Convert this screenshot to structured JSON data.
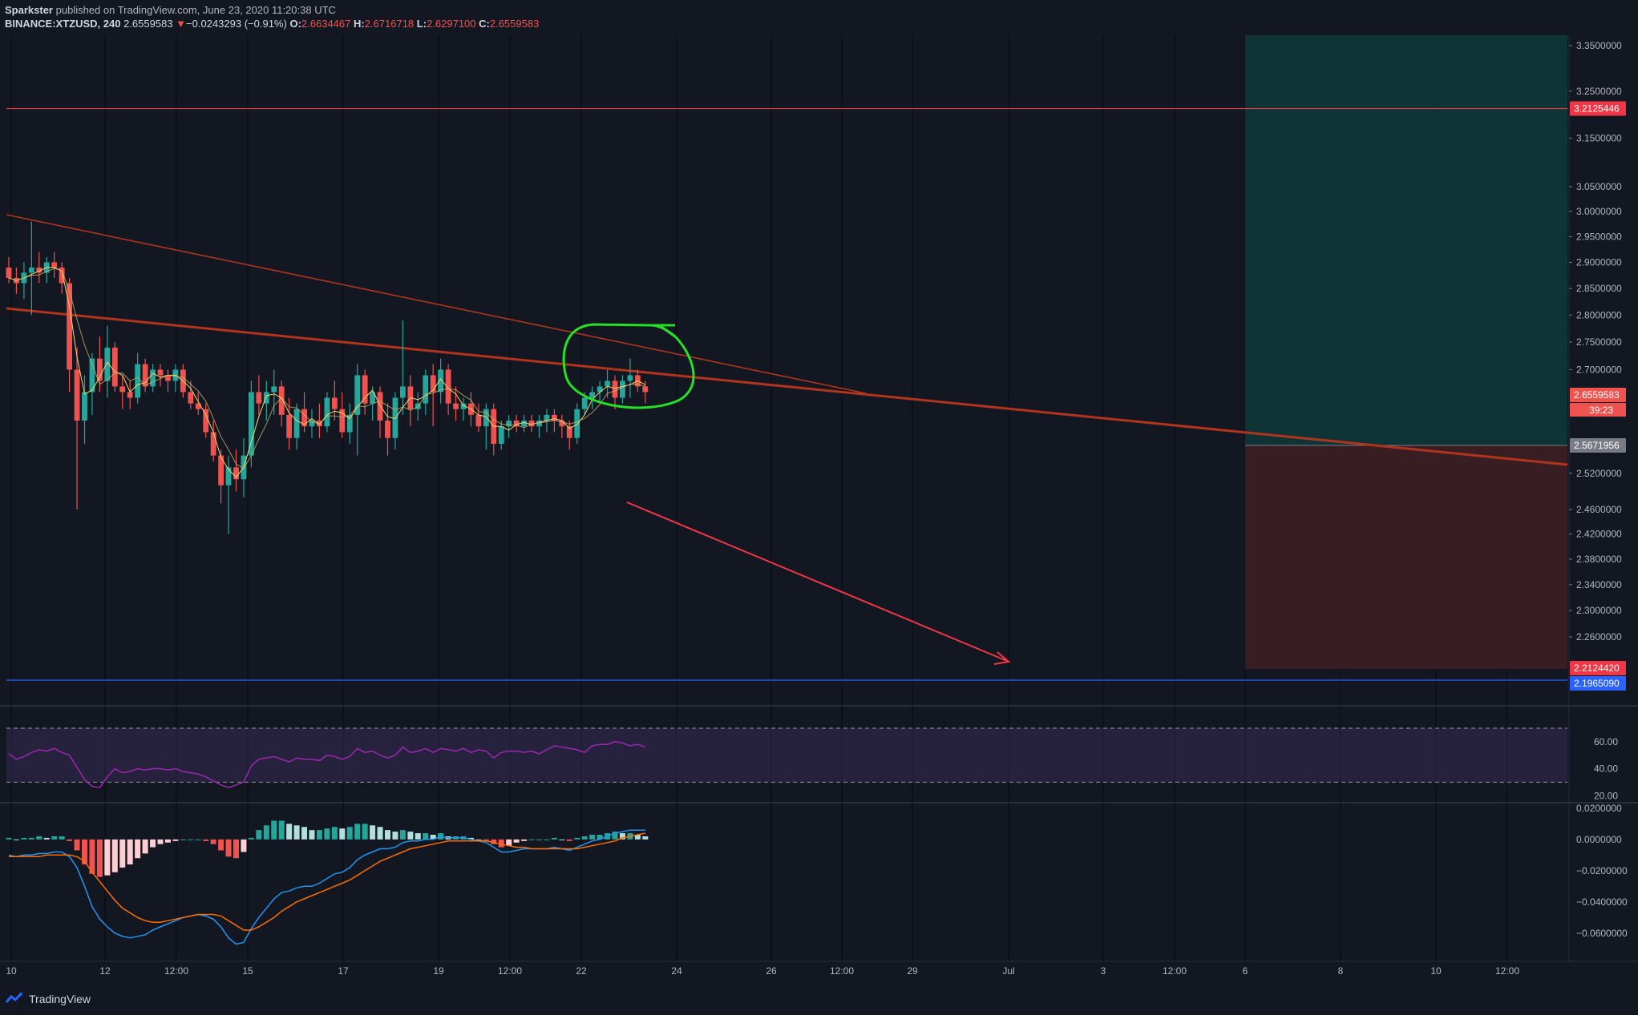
{
  "header": {
    "publisher": "Sparkster",
    "published_text": "published on TradingView.com, June 23, 2020 11:20:38 UTC",
    "symbol": "BINANCE:XTZUSD, 240",
    "last": "2.6559583",
    "change_arrow": "▼",
    "change": "−0.0243293 (−0.91%)",
    "o_label": "O:",
    "o_value": "2.6634467",
    "h_label": "H:",
    "h_value": "2.6716718",
    "l_label": "L:",
    "l_value": "2.6297100",
    "c_label": "C:",
    "c_value": "2.6559583"
  },
  "brand": {
    "name": "TradingView"
  },
  "colors": {
    "background": "#131722",
    "up": "#26a69a",
    "down": "#ef5350",
    "resistance": "#f23645",
    "support": "#2962ff",
    "trendline": "#b2341c",
    "rsi_line": "#9c27b0",
    "macd_line": "#2196f3",
    "signal_line": "#ff6d00",
    "annotation_circle": "#26e026",
    "target_zone": "#0e3a3a",
    "stop_zone": "#3d1f24"
  },
  "chart_data": [
    {
      "type": "candlestick",
      "title": "BINANCE:XTZUSD, 240",
      "x_ticks": [
        "10",
        "12",
        "12:00",
        "15",
        "17",
        "19",
        "12:00",
        "22",
        "24",
        "26",
        "12:00",
        "29",
        "Jul",
        "3",
        "12:00",
        "6",
        "8",
        "10",
        "12:00"
      ],
      "y_ticks": [
        "3.3500000",
        "3.2500000",
        "3.1500000",
        "3.0500000",
        "3.0000000",
        "2.9500000",
        "2.9000000",
        "2.8500000",
        "2.8000000",
        "2.7500000",
        "2.7000000",
        "2.5200000",
        "2.4600000",
        "2.4200000",
        "2.3800000",
        "2.3400000",
        "2.3000000",
        "2.2600000"
      ],
      "y_scale": "log",
      "ylim": [
        2.19,
        3.37
      ],
      "price_tags": [
        {
          "value": "3.2125446",
          "kind": "resistance"
        },
        {
          "value": "2.6559583",
          "kind": "last",
          "countdown": "39:23"
        },
        {
          "value": "2.5671956",
          "kind": "entry"
        },
        {
          "value": "2.2124420",
          "kind": "stop"
        },
        {
          "value": "2.1965090",
          "kind": "support"
        }
      ],
      "position_zones": {
        "entry": 2.5671956,
        "target": 3.37,
        "stop": 2.212442,
        "start_tick": "6"
      },
      "candles_ohlc": [
        [
          2.89,
          2.91,
          2.86,
          2.87
        ],
        [
          2.87,
          2.89,
          2.84,
          2.86
        ],
        [
          2.86,
          2.9,
          2.83,
          2.88
        ],
        [
          2.88,
          2.98,
          2.8,
          2.89
        ],
        [
          2.89,
          2.92,
          2.86,
          2.88
        ],
        [
          2.88,
          2.91,
          2.86,
          2.9
        ],
        [
          2.9,
          2.92,
          2.87,
          2.89
        ],
        [
          2.89,
          2.9,
          2.84,
          2.86
        ],
        [
          2.86,
          2.87,
          2.66,
          2.7
        ],
        [
          2.7,
          2.74,
          2.46,
          2.61
        ],
        [
          2.61,
          2.69,
          2.57,
          2.66
        ],
        [
          2.66,
          2.73,
          2.62,
          2.72
        ],
        [
          2.72,
          2.76,
          2.66,
          2.68
        ],
        [
          2.68,
          2.78,
          2.65,
          2.74
        ],
        [
          2.74,
          2.75,
          2.66,
          2.67
        ],
        [
          2.67,
          2.69,
          2.63,
          2.66
        ],
        [
          2.66,
          2.68,
          2.63,
          2.65
        ],
        [
          2.65,
          2.73,
          2.64,
          2.71
        ],
        [
          2.71,
          2.72,
          2.66,
          2.67
        ],
        [
          2.67,
          2.71,
          2.66,
          2.7
        ],
        [
          2.7,
          2.71,
          2.67,
          2.69
        ],
        [
          2.69,
          2.7,
          2.66,
          2.68
        ],
        [
          2.68,
          2.71,
          2.66,
          2.7
        ],
        [
          2.7,
          2.71,
          2.65,
          2.66
        ],
        [
          2.66,
          2.68,
          2.63,
          2.64
        ],
        [
          2.64,
          2.66,
          2.62,
          2.63
        ],
        [
          2.63,
          2.64,
          2.58,
          2.59
        ],
        [
          2.59,
          2.61,
          2.54,
          2.55
        ],
        [
          2.55,
          2.56,
          2.47,
          2.5
        ],
        [
          2.5,
          2.55,
          2.42,
          2.53
        ],
        [
          2.53,
          2.56,
          2.49,
          2.51
        ],
        [
          2.51,
          2.58,
          2.48,
          2.55
        ],
        [
          2.55,
          2.68,
          2.53,
          2.66
        ],
        [
          2.66,
          2.69,
          2.62,
          2.64
        ],
        [
          2.64,
          2.68,
          2.61,
          2.66
        ],
        [
          2.66,
          2.7,
          2.62,
          2.67
        ],
        [
          2.67,
          2.68,
          2.6,
          2.62
        ],
        [
          2.62,
          2.65,
          2.56,
          2.58
        ],
        [
          2.58,
          2.64,
          2.56,
          2.63
        ],
        [
          2.63,
          2.66,
          2.59,
          2.6
        ],
        [
          2.6,
          2.63,
          2.58,
          2.61
        ],
        [
          2.61,
          2.64,
          2.58,
          2.6
        ],
        [
          2.6,
          2.66,
          2.59,
          2.65
        ],
        [
          2.65,
          2.68,
          2.61,
          2.63
        ],
        [
          2.63,
          2.66,
          2.58,
          2.59
        ],
        [
          2.59,
          2.64,
          2.57,
          2.62
        ],
        [
          2.62,
          2.71,
          2.55,
          2.69
        ],
        [
          2.69,
          2.7,
          2.62,
          2.64
        ],
        [
          2.64,
          2.67,
          2.61,
          2.66
        ],
        [
          2.66,
          2.67,
          2.58,
          2.61
        ],
        [
          2.61,
          2.64,
          2.55,
          2.58
        ],
        [
          2.58,
          2.66,
          2.56,
          2.65
        ],
        [
          2.65,
          2.79,
          2.62,
          2.67
        ],
        [
          2.67,
          2.69,
          2.6,
          2.63
        ],
        [
          2.63,
          2.66,
          2.61,
          2.64
        ],
        [
          2.64,
          2.7,
          2.62,
          2.69
        ],
        [
          2.69,
          2.71,
          2.6,
          2.66
        ],
        [
          2.66,
          2.72,
          2.64,
          2.7
        ],
        [
          2.7,
          2.71,
          2.62,
          2.64
        ],
        [
          2.64,
          2.67,
          2.61,
          2.63
        ],
        [
          2.63,
          2.65,
          2.61,
          2.64
        ],
        [
          2.64,
          2.66,
          2.6,
          2.62
        ],
        [
          2.62,
          2.64,
          2.59,
          2.6
        ],
        [
          2.6,
          2.64,
          2.56,
          2.63
        ],
        [
          2.63,
          2.64,
          2.55,
          2.57
        ],
        [
          2.57,
          2.61,
          2.56,
          2.6
        ],
        [
          2.6,
          2.62,
          2.58,
          2.61
        ],
        [
          2.61,
          2.62,
          2.59,
          2.6
        ],
        [
          2.6,
          2.62,
          2.59,
          2.61
        ],
        [
          2.61,
          2.62,
          2.59,
          2.6
        ],
        [
          2.6,
          2.62,
          2.58,
          2.61
        ],
        [
          2.61,
          2.63,
          2.59,
          2.62
        ],
        [
          2.62,
          2.63,
          2.59,
          2.61
        ],
        [
          2.61,
          2.62,
          2.58,
          2.6
        ],
        [
          2.6,
          2.61,
          2.56,
          2.58
        ],
        [
          2.58,
          2.64,
          2.57,
          2.63
        ],
        [
          2.63,
          2.66,
          2.62,
          2.65
        ],
        [
          2.65,
          2.67,
          2.63,
          2.66
        ],
        [
          2.66,
          2.68,
          2.64,
          2.67
        ],
        [
          2.67,
          2.7,
          2.65,
          2.68
        ],
        [
          2.68,
          2.69,
          2.63,
          2.65
        ],
        [
          2.65,
          2.69,
          2.64,
          2.68
        ],
        [
          2.68,
          2.72,
          2.65,
          2.69
        ],
        [
          2.69,
          2.7,
          2.66,
          2.67
        ],
        [
          2.67,
          2.68,
          2.64,
          2.66
        ]
      ]
    },
    {
      "type": "line",
      "title": "RSI",
      "y_ticks": [
        "60.00",
        "40.00",
        "20.00"
      ],
      "ylim": [
        16,
        86
      ],
      "bands": [
        70,
        30
      ],
      "series": [
        {
          "values": [
            51,
            47,
            49,
            52,
            54,
            53,
            55,
            52,
            50,
            41,
            32,
            27,
            26,
            34,
            40,
            37,
            38,
            40,
            39,
            40,
            40,
            39,
            40,
            38,
            37,
            36,
            34,
            31,
            28,
            26,
            28,
            30,
            42,
            47,
            48,
            49,
            47,
            45,
            48,
            47,
            47,
            46,
            50,
            49,
            47,
            49,
            55,
            52,
            53,
            50,
            48,
            50,
            56,
            52,
            53,
            55,
            52,
            55,
            54,
            53,
            55,
            52,
            54,
            53,
            48,
            52,
            53,
            53,
            52,
            53,
            51,
            54,
            57,
            56,
            55,
            54,
            52,
            57,
            58,
            58,
            60,
            59,
            57,
            58,
            56
          ]
        }
      ]
    },
    {
      "type": "bar_and_line",
      "title": "MACD",
      "y_ticks": [
        "0.0200000",
        "0.0000000",
        "−0.0200000",
        "−0.0400000",
        "−0.0600000"
      ],
      "ylim": [
        -0.077,
        0.023
      ],
      "series": [
        {
          "values": [
            -0.01,
            -0.011,
            -0.01,
            -0.01,
            -0.009,
            -0.009,
            -0.008,
            -0.008,
            -0.011,
            -0.018,
            -0.03,
            -0.043,
            -0.051,
            -0.056,
            -0.06,
            -0.062,
            -0.063,
            -0.062,
            -0.061,
            -0.058,
            -0.056,
            -0.054,
            -0.052,
            -0.05,
            -0.049,
            -0.048,
            -0.049,
            -0.051,
            -0.056,
            -0.063,
            -0.067,
            -0.066,
            -0.057,
            -0.05,
            -0.044,
            -0.038,
            -0.034,
            -0.033,
            -0.031,
            -0.03,
            -0.03,
            -0.028,
            -0.025,
            -0.022,
            -0.021,
            -0.018,
            -0.013,
            -0.01,
            -0.008,
            -0.006,
            -0.006,
            -0.005,
            -0.002,
            -0.001,
            -0.001,
            0.0,
            0.0,
            0.002,
            0.001,
            0.001,
            0.001,
            0.0,
            -0.001,
            -0.002,
            -0.005,
            -0.008,
            -0.008,
            -0.007,
            -0.006,
            -0.006,
            -0.006,
            -0.006,
            -0.005,
            -0.006,
            -0.007,
            -0.005,
            -0.003,
            -0.001,
            0.0,
            0.002,
            0.004,
            0.005,
            0.006,
            0.006,
            0.006
          ]
        },
        {
          "values": [
            -0.011,
            -0.011,
            -0.011,
            -0.011,
            -0.011,
            -0.01,
            -0.01,
            -0.01,
            -0.01,
            -0.011,
            -0.014,
            -0.021,
            -0.027,
            -0.033,
            -0.039,
            -0.044,
            -0.047,
            -0.05,
            -0.052,
            -0.053,
            -0.053,
            -0.052,
            -0.051,
            -0.05,
            -0.049,
            -0.048,
            -0.048,
            -0.048,
            -0.049,
            -0.052,
            -0.055,
            -0.058,
            -0.058,
            -0.056,
            -0.053,
            -0.05,
            -0.046,
            -0.043,
            -0.04,
            -0.038,
            -0.036,
            -0.034,
            -0.032,
            -0.03,
            -0.028,
            -0.026,
            -0.023,
            -0.02,
            -0.017,
            -0.014,
            -0.012,
            -0.01,
            -0.008,
            -0.006,
            -0.005,
            -0.004,
            -0.003,
            -0.002,
            -0.001,
            -0.001,
            -0.001,
            -0.001,
            -0.001,
            -0.001,
            -0.002,
            -0.003,
            -0.004,
            -0.005,
            -0.005,
            -0.006,
            -0.006,
            -0.006,
            -0.006,
            -0.006,
            -0.006,
            -0.006,
            -0.005,
            -0.004,
            -0.003,
            -0.002,
            -0.001,
            0.001,
            0.002,
            0.003,
            0.004
          ]
        },
        {
          "values": [
            0.001,
            0.0,
            0.001,
            0.001,
            0.002,
            0.001,
            0.002,
            0.002,
            -0.001,
            -0.007,
            -0.016,
            -0.022,
            -0.024,
            -0.023,
            -0.021,
            -0.018,
            -0.016,
            -0.012,
            -0.009,
            -0.005,
            -0.003,
            -0.002,
            -0.001,
            0.0,
            0.0,
            0.0,
            -0.001,
            -0.003,
            -0.007,
            -0.011,
            -0.012,
            -0.008,
            0.001,
            0.006,
            0.009,
            0.012,
            0.012,
            0.01,
            0.009,
            0.008,
            0.006,
            0.006,
            0.007,
            0.008,
            0.007,
            0.008,
            0.01,
            0.01,
            0.009,
            0.008,
            0.006,
            0.005,
            0.006,
            0.005,
            0.004,
            0.004,
            0.003,
            0.004,
            0.002,
            0.002,
            0.002,
            0.001,
            0.0,
            -0.001,
            -0.003,
            -0.005,
            -0.004,
            -0.002,
            -0.001,
            0.0,
            0.0,
            0.0,
            0.001,
            0.0,
            -0.001,
            0.001,
            0.002,
            0.003,
            0.003,
            0.004,
            0.005,
            0.004,
            0.004,
            0.003,
            0.002
          ]
        }
      ]
    }
  ]
}
